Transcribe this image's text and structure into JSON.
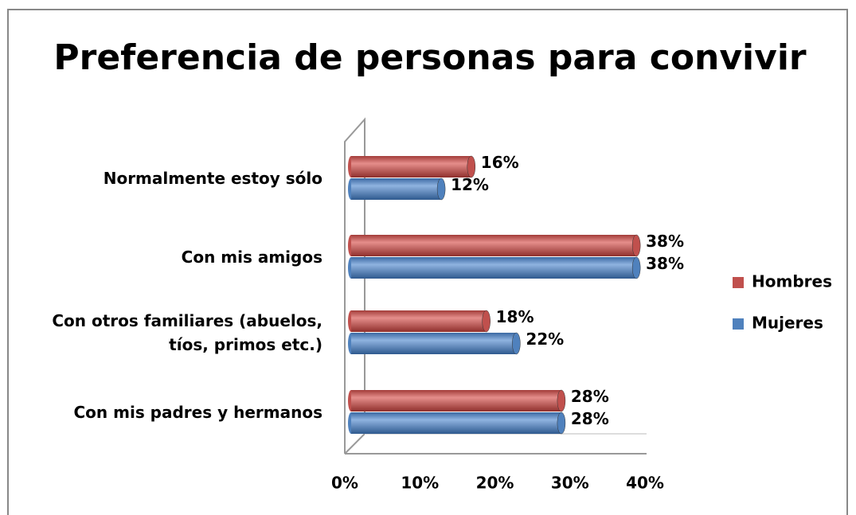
{
  "chart_data": {
    "type": "bar",
    "orientation": "horizontal",
    "title": "Preferencia de personas para convivir",
    "categories": [
      "Normalmente estoy sólo",
      "Con mis amigos",
      "Con otros familiares (abuelos, tíos, primos etc.)",
      "Con mis padres y hermanos"
    ],
    "series": [
      {
        "name": "Hombres",
        "color": "#c0504d",
        "values": [
          16,
          38,
          18,
          28
        ],
        "value_labels": [
          "16%",
          "38%",
          "18%",
          "28%"
        ]
      },
      {
        "name": "Mujeres",
        "color": "#4f81bd",
        "values": [
          12,
          38,
          22,
          28
        ],
        "value_labels": [
          "12%",
          "38%",
          "22%",
          "28%"
        ]
      }
    ],
    "xlim": [
      0,
      40
    ],
    "xticks": [
      {
        "value": 0,
        "label": "0%"
      },
      {
        "value": 10,
        "label": "10%"
      },
      {
        "value": 20,
        "label": "20%"
      },
      {
        "value": 30,
        "label": "30%"
      },
      {
        "value": 40,
        "label": "40%"
      }
    ],
    "legend": "right"
  }
}
